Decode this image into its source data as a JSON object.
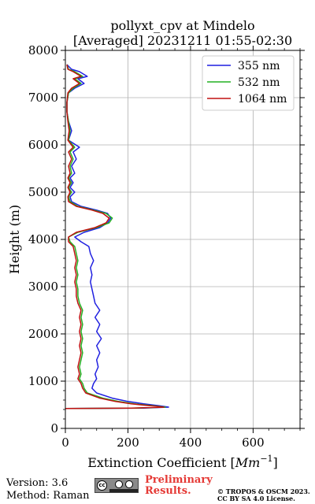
{
  "chart_data": {
    "type": "line",
    "title_line1": "pollyxt_cpv at Mindelo",
    "title_line2": "[Averaged] 20231211 01:55-02:30",
    "xlabel": "Extinction Coefficient [",
    "xlabel_unit": "Mm",
    "xlabel_exp": "−1",
    "xlabel_close": "]",
    "ylabel": "Height (m)",
    "xlim": [
      0,
      750
    ],
    "ylim": [
      0,
      8000
    ],
    "xticks": [
      0,
      200,
      400,
      600
    ],
    "yticks": [
      0,
      1000,
      2000,
      3000,
      4000,
      5000,
      6000,
      7000,
      8000
    ],
    "xtick_labels": [
      "0",
      "200",
      "400",
      "600"
    ],
    "ytick_labels": [
      "0",
      "1000",
      "2000",
      "3000",
      "4000",
      "5000",
      "6000",
      "7000",
      "8000"
    ],
    "grid": true,
    "legend_position": "top-right",
    "series": [
      {
        "name": "355 nm",
        "color": "#1f1fe0",
        "points": [
          [
            0,
            420
          ],
          [
            250,
            430
          ],
          [
            330,
            450
          ],
          [
            300,
            480
          ],
          [
            250,
            520
          ],
          [
            200,
            570
          ],
          [
            150,
            640
          ],
          [
            100,
            750
          ],
          [
            85,
            850
          ],
          [
            90,
            950
          ],
          [
            100,
            1050
          ],
          [
            95,
            1150
          ],
          [
            105,
            1300
          ],
          [
            100,
            1450
          ],
          [
            110,
            1600
          ],
          [
            100,
            1750
          ],
          [
            115,
            1900
          ],
          [
            100,
            2050
          ],
          [
            110,
            2200
          ],
          [
            95,
            2350
          ],
          [
            110,
            2500
          ],
          [
            95,
            2650
          ],
          [
            90,
            2800
          ],
          [
            85,
            2950
          ],
          [
            80,
            3100
          ],
          [
            85,
            3250
          ],
          [
            80,
            3400
          ],
          [
            90,
            3550
          ],
          [
            80,
            3700
          ],
          [
            75,
            3850
          ],
          [
            50,
            3950
          ],
          [
            30,
            4050
          ],
          [
            60,
            4150
          ],
          [
            110,
            4250
          ],
          [
            135,
            4350
          ],
          [
            145,
            4450
          ],
          [
            135,
            4550
          ],
          [
            100,
            4620
          ],
          [
            50,
            4700
          ],
          [
            20,
            4800
          ],
          [
            15,
            4900
          ],
          [
            30,
            5000
          ],
          [
            15,
            5100
          ],
          [
            25,
            5200
          ],
          [
            15,
            5300
          ],
          [
            30,
            5400
          ],
          [
            20,
            5550
          ],
          [
            35,
            5700
          ],
          [
            25,
            5850
          ],
          [
            45,
            5950
          ],
          [
            10,
            6100
          ],
          [
            20,
            6300
          ],
          [
            10,
            6500
          ],
          [
            5,
            6700
          ],
          [
            5,
            6900
          ],
          [
            10,
            7100
          ],
          [
            30,
            7200
          ],
          [
            60,
            7300
          ],
          [
            40,
            7400
          ],
          [
            70,
            7450
          ],
          [
            45,
            7550
          ],
          [
            20,
            7600
          ],
          [
            5,
            7700
          ]
        ]
      },
      {
        "name": "532 nm",
        "color": "#22b022",
        "points": [
          [
            0,
            420
          ],
          [
            220,
            430
          ],
          [
            320,
            450
          ],
          [
            280,
            480
          ],
          [
            220,
            520
          ],
          [
            170,
            570
          ],
          [
            120,
            640
          ],
          [
            70,
            750
          ],
          [
            60,
            850
          ],
          [
            55,
            950
          ],
          [
            45,
            1050
          ],
          [
            50,
            1150
          ],
          [
            45,
            1300
          ],
          [
            50,
            1450
          ],
          [
            55,
            1600
          ],
          [
            50,
            1750
          ],
          [
            55,
            1900
          ],
          [
            50,
            2050
          ],
          [
            55,
            2200
          ],
          [
            50,
            2350
          ],
          [
            55,
            2500
          ],
          [
            45,
            2650
          ],
          [
            40,
            2800
          ],
          [
            40,
            2950
          ],
          [
            35,
            3100
          ],
          [
            40,
            3250
          ],
          [
            35,
            3400
          ],
          [
            40,
            3550
          ],
          [
            35,
            3700
          ],
          [
            30,
            3850
          ],
          [
            15,
            3950
          ],
          [
            10,
            4050
          ],
          [
            40,
            4150
          ],
          [
            100,
            4250
          ],
          [
            140,
            4350
          ],
          [
            150,
            4450
          ],
          [
            130,
            4550
          ],
          [
            90,
            4620
          ],
          [
            40,
            4700
          ],
          [
            15,
            4800
          ],
          [
            10,
            4900
          ],
          [
            20,
            5000
          ],
          [
            10,
            5100
          ],
          [
            20,
            5200
          ],
          [
            10,
            5300
          ],
          [
            20,
            5400
          ],
          [
            15,
            5550
          ],
          [
            25,
            5700
          ],
          [
            15,
            5850
          ],
          [
            30,
            5950
          ],
          [
            10,
            6100
          ],
          [
            15,
            6300
          ],
          [
            10,
            6500
          ],
          [
            5,
            6700
          ],
          [
            5,
            6900
          ],
          [
            10,
            7100
          ],
          [
            25,
            7200
          ],
          [
            50,
            7300
          ],
          [
            30,
            7400
          ],
          [
            55,
            7450
          ],
          [
            30,
            7550
          ],
          [
            10,
            7600
          ],
          [
            5,
            7700
          ]
        ]
      },
      {
        "name": "1064 nm",
        "color": "#c01010",
        "points": [
          [
            0,
            420
          ],
          [
            210,
            430
          ],
          [
            315,
            450
          ],
          [
            270,
            480
          ],
          [
            210,
            520
          ],
          [
            160,
            570
          ],
          [
            110,
            640
          ],
          [
            65,
            750
          ],
          [
            55,
            850
          ],
          [
            50,
            950
          ],
          [
            40,
            1050
          ],
          [
            45,
            1150
          ],
          [
            40,
            1300
          ],
          [
            45,
            1450
          ],
          [
            50,
            1600
          ],
          [
            45,
            1750
          ],
          [
            50,
            1900
          ],
          [
            45,
            2050
          ],
          [
            50,
            2200
          ],
          [
            45,
            2350
          ],
          [
            50,
            2500
          ],
          [
            40,
            2650
          ],
          [
            35,
            2800
          ],
          [
            35,
            2950
          ],
          [
            30,
            3100
          ],
          [
            35,
            3250
          ],
          [
            30,
            3400
          ],
          [
            35,
            3550
          ],
          [
            30,
            3700
          ],
          [
            25,
            3850
          ],
          [
            10,
            3950
          ],
          [
            10,
            4050
          ],
          [
            35,
            4150
          ],
          [
            95,
            4250
          ],
          [
            130,
            4350
          ],
          [
            140,
            4450
          ],
          [
            120,
            4550
          ],
          [
            85,
            4620
          ],
          [
            35,
            4700
          ],
          [
            10,
            4800
          ],
          [
            8,
            4900
          ],
          [
            15,
            5000
          ],
          [
            8,
            5100
          ],
          [
            15,
            5200
          ],
          [
            8,
            5300
          ],
          [
            15,
            5400
          ],
          [
            10,
            5550
          ],
          [
            20,
            5700
          ],
          [
            10,
            5850
          ],
          [
            25,
            5950
          ],
          [
            8,
            6100
          ],
          [
            12,
            6300
          ],
          [
            8,
            6500
          ],
          [
            5,
            6700
          ],
          [
            5,
            6900
          ],
          [
            8,
            7100
          ],
          [
            20,
            7200
          ],
          [
            45,
            7300
          ],
          [
            25,
            7400
          ],
          [
            50,
            7450
          ],
          [
            25,
            7550
          ],
          [
            8,
            7600
          ],
          [
            5,
            7700
          ]
        ]
      }
    ]
  },
  "footer": {
    "version": "Version: 3.6",
    "method": "Method: Raman",
    "license_icon": "cc-by-sa-icon",
    "preliminary_line1": "Preliminary",
    "preliminary_line2": "Results.",
    "copyright_line1": "© TROPOS & OSCM 2023.",
    "copyright_line2": "CC BY SA 4.0 License."
  }
}
